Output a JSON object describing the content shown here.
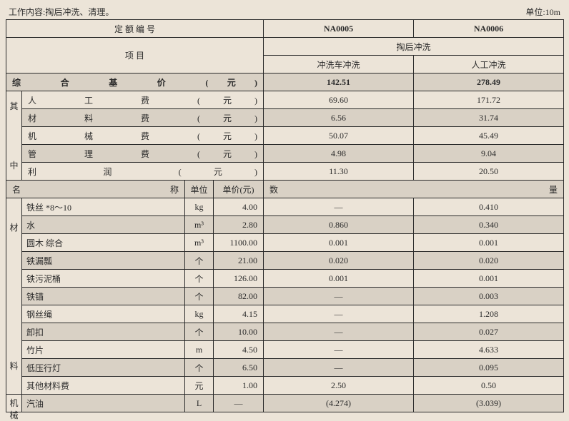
{
  "header": {
    "work_content_label": "工作内容:",
    "work_content_value": "掏后冲洗、清理。",
    "unit_label": "单位:10m"
  },
  "code_header": {
    "label": "定 额 编 号",
    "code1": "NA0005",
    "code2": "NA0006"
  },
  "item_header": {
    "label": "项 目",
    "group": "掏后冲洗",
    "col1": "冲洗车冲洗",
    "col2": "人工冲洗"
  },
  "base_price": {
    "label": "综 合 基 价 (元)",
    "v1": "142.51",
    "v2": "278.49"
  },
  "side_left": "其中",
  "cost_rows": [
    {
      "label": "人 工 费 (元)",
      "v1": "69.60",
      "v2": "171.72",
      "stripe": false
    },
    {
      "label": "材 料 费 (元)",
      "v1": "6.56",
      "v2": "31.74",
      "stripe": true
    },
    {
      "label": "机 械 费 (元)",
      "v1": "50.07",
      "v2": "45.49",
      "stripe": false
    },
    {
      "label": "管 理 费 (元)",
      "v1": "4.98",
      "v2": "9.04",
      "stripe": true
    },
    {
      "label": "利 润 (元)",
      "v1": "11.30",
      "v2": "20.50",
      "stripe": false
    }
  ],
  "mat_header": {
    "name": "名 称",
    "unit": "单位",
    "price": "单价(元)",
    "qty": "数 量"
  },
  "side_mat": "材料",
  "side_mech": "机械",
  "material_rows": [
    {
      "name": "铁丝 *8～10",
      "unit": "kg",
      "price": "4.00",
      "v1": "—",
      "v2": "0.410",
      "stripe": false
    },
    {
      "name": "水",
      "unit": "m³",
      "price": "2.80",
      "v1": "0.860",
      "v2": "0.340",
      "stripe": true
    },
    {
      "name": "圆木 综合",
      "unit": "m³",
      "price": "1100.00",
      "v1": "0.001",
      "v2": "0.001",
      "stripe": false
    },
    {
      "name": "铁漏瓢",
      "unit": "个",
      "price": "21.00",
      "v1": "0.020",
      "v2": "0.020",
      "stripe": true
    },
    {
      "name": "铁污泥桶",
      "unit": "个",
      "price": "126.00",
      "v1": "0.001",
      "v2": "0.001",
      "stripe": false
    },
    {
      "name": "铁锚",
      "unit": "个",
      "price": "82.00",
      "v1": "—",
      "v2": "0.003",
      "stripe": true
    },
    {
      "name": "钢丝绳",
      "unit": "kg",
      "price": "4.15",
      "v1": "—",
      "v2": "1.208",
      "stripe": false
    },
    {
      "name": "卸扣",
      "unit": "个",
      "price": "10.00",
      "v1": "—",
      "v2": "0.027",
      "stripe": true
    },
    {
      "name": "竹片",
      "unit": "m",
      "price": "4.50",
      "v1": "—",
      "v2": "4.633",
      "stripe": false
    },
    {
      "name": "低压行灯",
      "unit": "个",
      "price": "6.50",
      "v1": "—",
      "v2": "0.095",
      "stripe": true
    },
    {
      "name": "其他材料费",
      "unit": "元",
      "price": "1.00",
      "v1": "2.50",
      "v2": "0.50",
      "stripe": false
    }
  ],
  "mech_rows": [
    {
      "name": "汽油",
      "unit": "L",
      "price": "—",
      "v1": "(4.274)",
      "v2": "(3.039)",
      "stripe": true
    }
  ]
}
